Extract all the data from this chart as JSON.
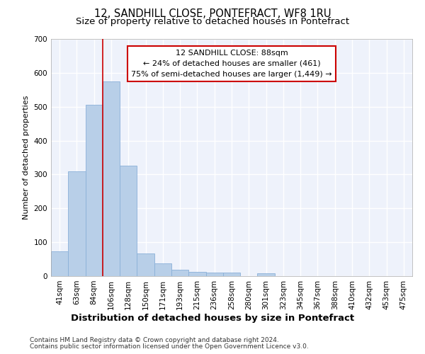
{
  "title1": "12, SANDHILL CLOSE, PONTEFRACT, WF8 1RU",
  "title2": "Size of property relative to detached houses in Pontefract",
  "xlabel": "Distribution of detached houses by size in Pontefract",
  "ylabel": "Number of detached properties",
  "categories": [
    "41sqm",
    "63sqm",
    "84sqm",
    "106sqm",
    "128sqm",
    "150sqm",
    "171sqm",
    "193sqm",
    "215sqm",
    "236sqm",
    "258sqm",
    "280sqm",
    "301sqm",
    "323sqm",
    "345sqm",
    "367sqm",
    "388sqm",
    "410sqm",
    "432sqm",
    "453sqm",
    "475sqm"
  ],
  "values": [
    73,
    310,
    505,
    575,
    325,
    67,
    38,
    18,
    13,
    11,
    11,
    0,
    8,
    0,
    0,
    0,
    0,
    0,
    0,
    0,
    0
  ],
  "bar_color": "#b8cfe8",
  "bar_edge_color": "#8ab0d8",
  "vline_x": 2.5,
  "vline_color": "#cc0000",
  "annotation_text": "12 SANDHILL CLOSE: 88sqm\n← 24% of detached houses are smaller (461)\n75% of semi-detached houses are larger (1,449) →",
  "annotation_box_color": "#ffffff",
  "annotation_edge_color": "#cc0000",
  "ylim": [
    0,
    700
  ],
  "yticks": [
    0,
    100,
    200,
    300,
    400,
    500,
    600,
    700
  ],
  "footer1": "Contains HM Land Registry data © Crown copyright and database right 2024.",
  "footer2": "Contains public sector information licensed under the Open Government Licence v3.0.",
  "background_color": "#eef2fb",
  "grid_color": "#ffffff",
  "title_fontsize": 10.5,
  "subtitle_fontsize": 9.5,
  "ylabel_fontsize": 8,
  "xlabel_fontsize": 9.5,
  "tick_fontsize": 7.5,
  "annotation_fontsize": 8,
  "footer_fontsize": 6.5
}
